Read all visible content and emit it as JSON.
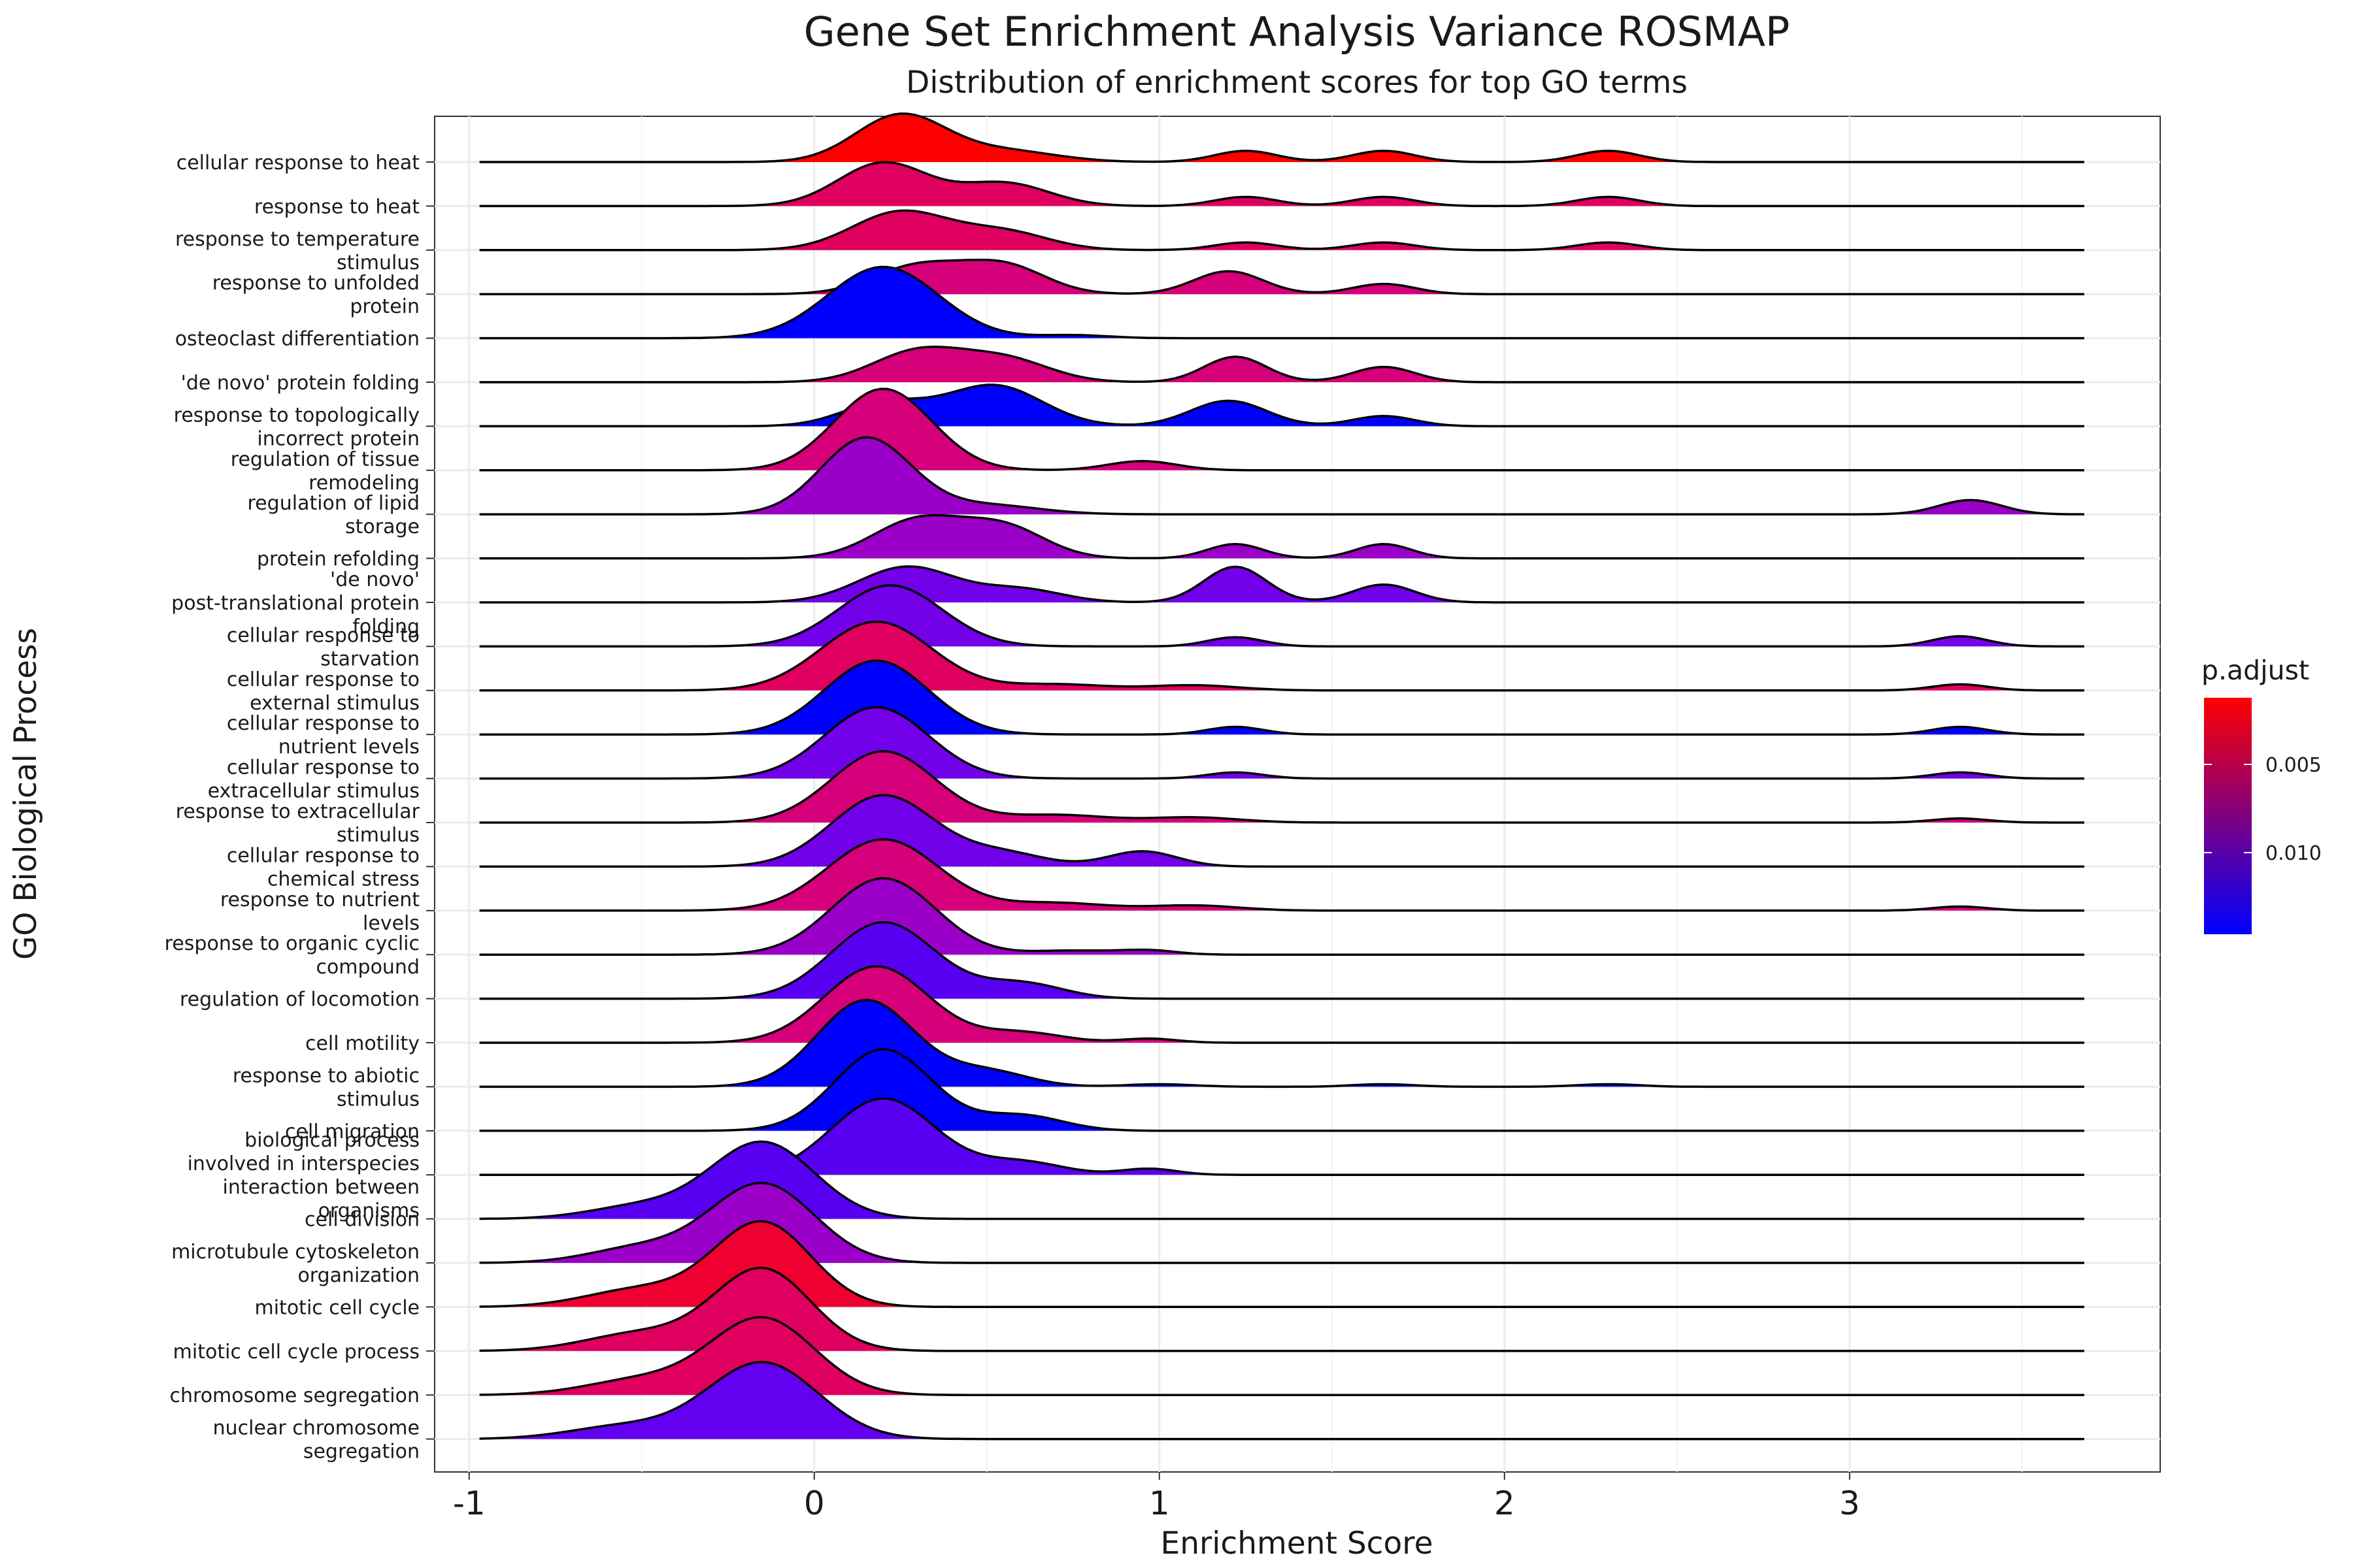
{
  "chart_data": {
    "type": "ridgeline",
    "title": "Gene Set Enrichment Analysis Variance ROSMAP",
    "subtitle": "Distribution of enrichment scores for top GO terms",
    "xlabel": "Enrichment Score",
    "ylabel": "GO Biological Process",
    "xlim": [
      -1.1,
      3.9
    ],
    "x_ticks": [
      "-1",
      "0",
      "1",
      "2",
      "3"
    ],
    "grid": true,
    "legend": {
      "title": "p.adjust",
      "position": "right",
      "ticks": [
        "0.005",
        "0.010"
      ],
      "colors": {
        "low": "#0000FF",
        "high": "#FF0000"
      }
    },
    "series": [
      {
        "label": "cellular response to heat",
        "color": "#FF0000",
        "peaks": [
          [
            0.25,
            0.13,
            0.92
          ],
          [
            0.55,
            0.15,
            0.22
          ],
          [
            1.25,
            0.09,
            0.22
          ],
          [
            1.65,
            0.09,
            0.22
          ],
          [
            2.3,
            0.09,
            0.22
          ]
        ]
      },
      {
        "label": "response to heat",
        "color": "#DF0060",
        "peaks": [
          [
            0.2,
            0.13,
            0.85
          ],
          [
            0.55,
            0.13,
            0.45
          ],
          [
            1.25,
            0.09,
            0.18
          ],
          [
            1.65,
            0.09,
            0.18
          ],
          [
            2.3,
            0.09,
            0.18
          ]
        ]
      },
      {
        "label": "response to temperature stimulus",
        "color": "#DF0060",
        "peaks": [
          [
            0.25,
            0.14,
            0.75
          ],
          [
            0.55,
            0.13,
            0.35
          ],
          [
            1.25,
            0.09,
            0.15
          ],
          [
            1.65,
            0.09,
            0.15
          ],
          [
            2.3,
            0.09,
            0.15
          ]
        ]
      },
      {
        "label": "response to unfolded protein",
        "color": "#D5007A",
        "peaks": [
          [
            0.3,
            0.13,
            0.55
          ],
          [
            0.55,
            0.12,
            0.55
          ],
          [
            1.2,
            0.1,
            0.45
          ],
          [
            1.65,
            0.09,
            0.2
          ]
        ]
      },
      {
        "label": "osteoclast differentiation",
        "color": "#0000FF",
        "peaks": [
          [
            0.2,
            0.16,
            1.4
          ],
          [
            0.75,
            0.1,
            0.06
          ]
        ]
      },
      {
        "label": "'de novo' protein folding",
        "color": "#D5007A",
        "peaks": [
          [
            0.3,
            0.13,
            0.6
          ],
          [
            0.55,
            0.13,
            0.45
          ],
          [
            1.22,
            0.09,
            0.5
          ],
          [
            1.65,
            0.09,
            0.3
          ]
        ]
      },
      {
        "label": "response to topologically incorrect protein",
        "color": "#0000FF",
        "peaks": [
          [
            0.2,
            0.12,
            0.45
          ],
          [
            0.52,
            0.14,
            0.8
          ],
          [
            1.2,
            0.11,
            0.5
          ],
          [
            1.65,
            0.09,
            0.2
          ]
        ]
      },
      {
        "label": "regulation of tissue remodeling",
        "color": "#D5007A",
        "peaks": [
          [
            0.2,
            0.14,
            1.6
          ],
          [
            0.95,
            0.1,
            0.18
          ]
        ]
      },
      {
        "label": "regulation of lipid storage",
        "color": "#9A00C8",
        "peaks": [
          [
            0.15,
            0.13,
            1.5
          ],
          [
            0.5,
            0.15,
            0.18
          ],
          [
            3.35,
            0.09,
            0.28
          ]
        ]
      },
      {
        "label": "protein refolding",
        "color": "#9A00C8",
        "peaks": [
          [
            0.3,
            0.13,
            0.75
          ],
          [
            0.55,
            0.12,
            0.6
          ],
          [
            1.22,
            0.08,
            0.28
          ],
          [
            1.65,
            0.08,
            0.28
          ]
        ]
      },
      {
        "label": "'de novo' post-translational protein folding",
        "color": "#7200E8",
        "peaks": [
          [
            0.27,
            0.14,
            0.7
          ],
          [
            0.6,
            0.12,
            0.25
          ],
          [
            1.22,
            0.09,
            0.7
          ],
          [
            1.65,
            0.09,
            0.35
          ]
        ]
      },
      {
        "label": "cellular response to starvation",
        "color": "#7200E8",
        "peaks": [
          [
            0.22,
            0.15,
            1.2
          ],
          [
            1.22,
            0.08,
            0.18
          ],
          [
            3.32,
            0.08,
            0.2
          ]
        ]
      },
      {
        "label": "cellular response to external stimulus",
        "color": "#DF0060",
        "peaks": [
          [
            0.18,
            0.16,
            1.35
          ],
          [
            0.7,
            0.15,
            0.12
          ],
          [
            1.1,
            0.13,
            0.1
          ],
          [
            3.32,
            0.08,
            0.12
          ]
        ]
      },
      {
        "label": "cellular response to nutrient levels",
        "color": "#0000FF",
        "peaks": [
          [
            0.18,
            0.15,
            1.45
          ],
          [
            1.22,
            0.08,
            0.15
          ],
          [
            3.32,
            0.08,
            0.15
          ]
        ]
      },
      {
        "label": "cellular response to extracellular stimulus",
        "color": "#7200E8",
        "peaks": [
          [
            0.18,
            0.15,
            1.4
          ],
          [
            1.22,
            0.08,
            0.12
          ],
          [
            3.32,
            0.08,
            0.12
          ]
        ]
      },
      {
        "label": "response to extracellular stimulus",
        "color": "#D5007A",
        "peaks": [
          [
            0.2,
            0.15,
            1.4
          ],
          [
            0.7,
            0.15,
            0.15
          ],
          [
            1.1,
            0.13,
            0.1
          ],
          [
            3.32,
            0.08,
            0.08
          ]
        ]
      },
      {
        "label": "cellular response to chemical stress",
        "color": "#7200E8",
        "peaks": [
          [
            0.2,
            0.15,
            1.4
          ],
          [
            0.55,
            0.12,
            0.25
          ],
          [
            0.95,
            0.1,
            0.3
          ]
        ]
      },
      {
        "label": "response to nutrient levels",
        "color": "#D5007A",
        "peaks": [
          [
            0.2,
            0.16,
            1.4
          ],
          [
            0.7,
            0.15,
            0.15
          ],
          [
            1.1,
            0.13,
            0.1
          ],
          [
            3.32,
            0.08,
            0.08
          ]
        ]
      },
      {
        "label": "response to organic cyclic compound",
        "color": "#9A00C8",
        "peaks": [
          [
            0.2,
            0.15,
            1.5
          ],
          [
            0.75,
            0.12,
            0.08
          ],
          [
            0.97,
            0.08,
            0.08
          ]
        ]
      },
      {
        "label": "regulation of locomotion",
        "color": "#5800F2",
        "peaks": [
          [
            0.2,
            0.15,
            1.5
          ],
          [
            0.6,
            0.12,
            0.3
          ]
        ]
      },
      {
        "label": "cell motility",
        "color": "#D5007A",
        "peaks": [
          [
            0.18,
            0.15,
            1.5
          ],
          [
            0.6,
            0.12,
            0.2
          ],
          [
            0.97,
            0.08,
            0.08
          ]
        ]
      },
      {
        "label": "response to abiotic stimulus",
        "color": "#0000FF",
        "peaks": [
          [
            0.15,
            0.14,
            1.7
          ],
          [
            0.5,
            0.12,
            0.3
          ],
          [
            1.0,
            0.1,
            0.05
          ],
          [
            1.65,
            0.09,
            0.05
          ],
          [
            2.3,
            0.09,
            0.05
          ]
        ]
      },
      {
        "label": "cell migration",
        "color": "#0000FF",
        "peaks": [
          [
            0.2,
            0.14,
            1.6
          ],
          [
            0.6,
            0.12,
            0.3
          ]
        ]
      },
      {
        "label": "biological process involved in interspecies interaction between organisms",
        "color": "#5800F2",
        "peaks": [
          [
            0.2,
            0.15,
            1.5
          ],
          [
            0.6,
            0.12,
            0.25
          ],
          [
            0.97,
            0.08,
            0.12
          ]
        ]
      },
      {
        "label": "cell division",
        "color": "#5800F2",
        "peaks": [
          [
            -0.15,
            0.15,
            1.5
          ],
          [
            -0.5,
            0.15,
            0.25
          ]
        ]
      },
      {
        "label": "microtubule cytoskeleton organization",
        "color": "#9A00C8",
        "peaks": [
          [
            -0.15,
            0.15,
            1.55
          ],
          [
            -0.5,
            0.15,
            0.3
          ]
        ]
      },
      {
        "label": "mitotic cell cycle",
        "color": "#EF0030",
        "peaks": [
          [
            -0.15,
            0.14,
            1.65
          ],
          [
            -0.5,
            0.16,
            0.35
          ]
        ]
      },
      {
        "label": "mitotic cell cycle process",
        "color": "#DF0060",
        "peaks": [
          [
            -0.15,
            0.14,
            1.6
          ],
          [
            -0.5,
            0.16,
            0.35
          ]
        ]
      },
      {
        "label": "chromosome segregation",
        "color": "#DF0060",
        "peaks": [
          [
            -0.15,
            0.15,
            1.5
          ],
          [
            -0.5,
            0.16,
            0.3
          ]
        ]
      },
      {
        "label": "nuclear chromosome segregation",
        "color": "#6400F0",
        "peaks": [
          [
            -0.15,
            0.16,
            1.5
          ],
          [
            -0.55,
            0.16,
            0.25
          ]
        ]
      }
    ]
  }
}
